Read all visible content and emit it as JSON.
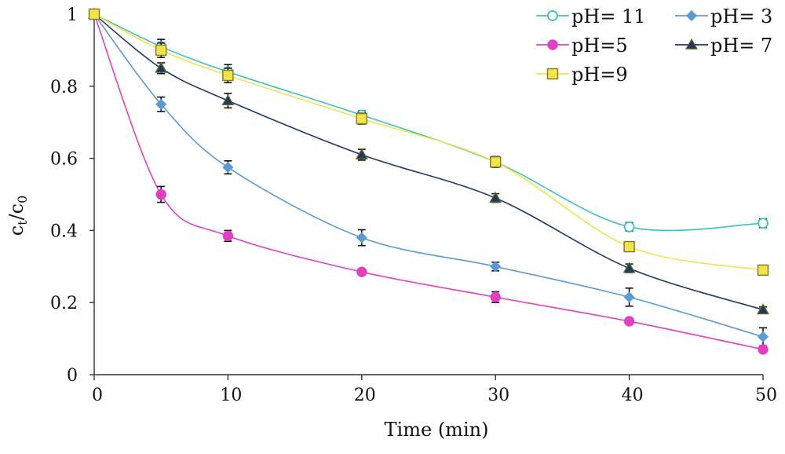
{
  "chart_data": {
    "type": "line",
    "xlabel": "Time (min)",
    "ylabel_main": "c",
    "ylabel_sub1": "t",
    "ylabel_slash": "/c",
    "ylabel_sub2": "0",
    "xlim": [
      0,
      50
    ],
    "ylim": [
      0,
      1
    ],
    "x_ticks": [
      0,
      10,
      20,
      30,
      40,
      50
    ],
    "y_ticks": [
      0,
      0.2,
      0.4,
      0.6,
      0.8,
      1
    ],
    "x_tick_labels": [
      "0",
      "10",
      "20",
      "30",
      "40",
      "50"
    ],
    "y_tick_labels": [
      "0",
      "0.2",
      "0.4",
      "0.6",
      "0.8",
      "1"
    ],
    "grid": false,
    "legend_position": "top-right",
    "series": [
      {
        "name": "pH= 11",
        "color": "#3cc1c1",
        "marker": "circle-open",
        "x": [
          0,
          5,
          10,
          20,
          30,
          40,
          50
        ],
        "y": [
          1.0,
          0.91,
          0.84,
          0.72,
          0.59,
          0.41,
          0.42
        ],
        "err": [
          0.01,
          0.02,
          0.02,
          0.012,
          0.012,
          0.012,
          0.012
        ]
      },
      {
        "name": "pH= 3",
        "color": "#5b9bd5",
        "marker": "diamond",
        "x": [
          0,
          5,
          10,
          20,
          30,
          40,
          50
        ],
        "y": [
          1.0,
          0.75,
          0.575,
          0.38,
          0.3,
          0.215,
          0.105
        ],
        "err": [
          0.01,
          0.02,
          0.018,
          0.022,
          0.012,
          0.025,
          0.025
        ]
      },
      {
        "name": "pH=5",
        "color": "#e040c0",
        "marker": "circle",
        "x": [
          0,
          5,
          10,
          20,
          30,
          40,
          50
        ],
        "y": [
          1.0,
          0.5,
          0.385,
          0.285,
          0.215,
          0.148,
          0.07
        ],
        "err": [
          0.01,
          0.022,
          0.015,
          0.008,
          0.015,
          0.008,
          0.008
        ]
      },
      {
        "name": "pH= 7",
        "color": "#1f3864",
        "marker": "triangle",
        "x": [
          0,
          5,
          10,
          20,
          30,
          40,
          50
        ],
        "y": [
          1.0,
          0.85,
          0.76,
          0.61,
          0.49,
          0.295,
          0.18
        ],
        "err": [
          0.01,
          0.015,
          0.02,
          0.015,
          0.012,
          0.012,
          0.008
        ]
      },
      {
        "name": "pH=9",
        "color": "#f2e34a",
        "marker": "square",
        "x": [
          0,
          5,
          10,
          20,
          30,
          40,
          50
        ],
        "y": [
          1.0,
          0.9,
          0.83,
          0.71,
          0.59,
          0.355,
          0.29
        ],
        "err": [
          0.01,
          0.02,
          0.02,
          0.015,
          0.015,
          0.012,
          0.008
        ]
      }
    ]
  }
}
